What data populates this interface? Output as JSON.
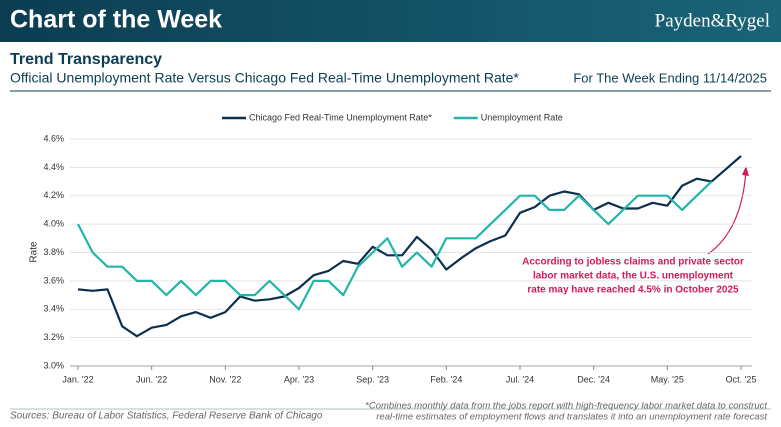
{
  "header": {
    "title": "Chart of the Week",
    "brand": "Payden&Rygel"
  },
  "chart_data": {
    "type": "line",
    "title": "Trend Transparency",
    "subtitle": "Official Unemployment Rate Versus Chicago Fed Real-Time Unemployment Rate*",
    "date_note": "For The Week Ending 11/14/2025",
    "y_label": "Rate",
    "categories": [
      "Jan. '22",
      null,
      null,
      null,
      null,
      "Jun. '22",
      null,
      null,
      null,
      null,
      "Nov. '22",
      null,
      null,
      null,
      null,
      "Apr. '23",
      null,
      null,
      null,
      null,
      "Sep. '23",
      null,
      null,
      null,
      null,
      "Feb. '24",
      null,
      null,
      null,
      null,
      "Jul. '24",
      null,
      null,
      null,
      null,
      "Dec. '24",
      null,
      null,
      null,
      null,
      "May. '25",
      null,
      null,
      null,
      null,
      "Oct. '25"
    ],
    "series": [
      {
        "name": "Chicago Fed Real-Time Unemployment Rate*",
        "color": "#0d2f4f",
        "values": [
          3.54,
          3.53,
          3.54,
          3.28,
          3.21,
          3.27,
          3.29,
          3.35,
          3.38,
          3.34,
          3.38,
          3.49,
          3.46,
          3.47,
          3.49,
          3.55,
          3.64,
          3.67,
          3.74,
          3.72,
          3.84,
          3.78,
          3.78,
          3.91,
          3.82,
          3.68,
          3.76,
          3.83,
          3.88,
          3.92,
          4.08,
          4.12,
          4.2,
          4.23,
          4.21,
          4.1,
          4.15,
          4.11,
          4.11,
          4.15,
          4.13,
          4.27,
          4.32,
          4.3,
          4.39,
          4.48
        ]
      },
      {
        "name": "Unemployment Rate",
        "color": "#22b5a8",
        "values": [
          4.0,
          3.8,
          3.7,
          3.7,
          3.6,
          3.6,
          3.5,
          3.6,
          3.5,
          3.6,
          3.6,
          3.5,
          3.5,
          3.6,
          3.5,
          3.4,
          3.6,
          3.6,
          3.5,
          3.7,
          3.8,
          3.9,
          3.7,
          3.8,
          3.7,
          3.9,
          3.9,
          3.9,
          4.0,
          4.1,
          4.2,
          4.2,
          4.1,
          4.1,
          4.2,
          4.1,
          4.0,
          4.1,
          4.2,
          4.2,
          4.2,
          4.1,
          4.2,
          4.3,
          null,
          null
        ]
      }
    ],
    "ylim": [
      3.0,
      4.6
    ],
    "yticks": [
      {
        "value": 3.0,
        "label": "3.0%"
      },
      {
        "value": 3.2,
        "label": "3.2%"
      },
      {
        "value": 3.4,
        "label": "3.4%"
      },
      {
        "value": 3.6,
        "label": "3.6%"
      },
      {
        "value": 3.8,
        "label": "3.8%"
      },
      {
        "value": 4.0,
        "label": "4.0%"
      },
      {
        "value": 4.2,
        "label": "4.2%"
      },
      {
        "value": 4.4,
        "label": "4.4%"
      },
      {
        "value": 4.6,
        "label": "4.6%"
      }
    ],
    "grid": true,
    "annotation": [
      "According to jobless claims and private sector",
      "labor market data, the U.S. unemployment",
      "rate may have reached 4.5% in October 2025"
    ],
    "sources": "Sources: Bureau of Labor Statistics, Federal Reserve Bank of Chicago",
    "footnote": [
      "*Combines monthly data from the jobs report with high-frequency labor market data to construct",
      "real-time estimates of employment flows and translates it into an unemployment rate forecast"
    ]
  }
}
